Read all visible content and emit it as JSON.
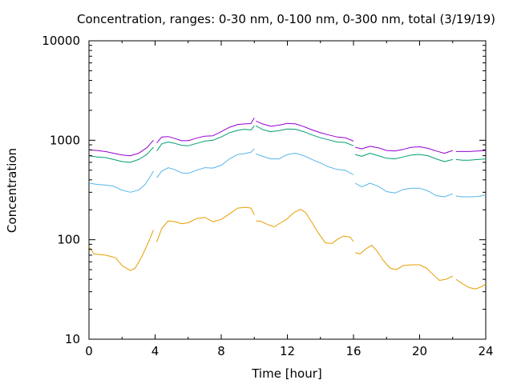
{
  "chart_data": {
    "type": "line",
    "title": "Concentration, ranges: 0-30 nm, 0-100 nm, 0-300 nm, total (3/19/19)",
    "xlabel": "Time [hour]",
    "ylabel": "Concentration",
    "xlim": [
      0,
      24
    ],
    "ylim": [
      10,
      10000
    ],
    "yscale": "log",
    "grid": false,
    "xticks": [
      0,
      4,
      8,
      12,
      16,
      20,
      24
    ],
    "xtick_labels": [
      "0",
      "4",
      "8",
      "12",
      "16",
      "20",
      "24"
    ],
    "yticks": [
      10,
      100,
      1000,
      10000
    ],
    "ytick_labels": [
      "10",
      "100",
      "1000",
      "10000"
    ],
    "series": [
      {
        "color": "#e69f00",
        "segments": [
          [
            [
              0,
              85
            ],
            [
              0.3,
              72
            ],
            [
              1,
              70
            ],
            [
              1.6,
              66
            ],
            [
              2,
              55
            ],
            [
              2.5,
              49
            ],
            [
              2.8,
              52
            ],
            [
              3.2,
              68
            ],
            [
              3.6,
              95
            ],
            [
              3.9,
              125
            ]
          ],
          [
            [
              4.1,
              95
            ],
            [
              4.4,
              130
            ],
            [
              4.8,
              155
            ],
            [
              5.2,
              152
            ],
            [
              5.6,
              145
            ],
            [
              6,
              148
            ],
            [
              6.5,
              163
            ],
            [
              7,
              168
            ],
            [
              7.5,
              152
            ],
            [
              8,
              160
            ],
            [
              8.5,
              182
            ],
            [
              9,
              208
            ],
            [
              9.5,
              212
            ],
            [
              9.8,
              208
            ],
            [
              10,
              178
            ]
          ],
          [
            [
              10.1,
              155
            ],
            [
              10.4,
              153
            ],
            [
              10.8,
              142
            ],
            [
              11.2,
              135
            ],
            [
              11.6,
              148
            ],
            [
              12,
              163
            ],
            [
              12.4,
              188
            ],
            [
              12.8,
              202
            ],
            [
              13.1,
              188
            ],
            [
              13.5,
              148
            ],
            [
              13.9,
              115
            ],
            [
              14.3,
              93
            ],
            [
              14.7,
              92
            ],
            [
              15,
              100
            ],
            [
              15.4,
              109
            ],
            [
              15.8,
              106
            ],
            [
              16,
              96
            ]
          ],
          [
            [
              16.1,
              74
            ],
            [
              16.4,
              72
            ],
            [
              16.8,
              82
            ],
            [
              17.1,
              88
            ],
            [
              17.4,
              78
            ],
            [
              17.8,
              62
            ],
            [
              18.2,
              52
            ],
            [
              18.6,
              50
            ],
            [
              19,
              55
            ],
            [
              19.5,
              56
            ],
            [
              20,
              56
            ],
            [
              20.4,
              52
            ],
            [
              20.8,
              45
            ],
            [
              21.2,
              39
            ],
            [
              21.6,
              40
            ],
            [
              22,
              43
            ]
          ],
          [
            [
              22.2,
              40
            ],
            [
              22.6,
              36
            ],
            [
              23,
              33
            ],
            [
              23.4,
              32
            ],
            [
              23.8,
              34
            ],
            [
              24,
              36
            ]
          ]
        ]
      },
      {
        "color": "#56b4e9",
        "segments": [
          [
            [
              0,
              370
            ],
            [
              0.5,
              360
            ],
            [
              1,
              355
            ],
            [
              1.5,
              345
            ],
            [
              2,
              315
            ],
            [
              2.5,
              300
            ],
            [
              3,
              315
            ],
            [
              3.4,
              360
            ],
            [
              3.7,
              430
            ],
            [
              3.9,
              490
            ]
          ],
          [
            [
              4.1,
              420
            ],
            [
              4.4,
              490
            ],
            [
              4.8,
              530
            ],
            [
              5.2,
              505
            ],
            [
              5.6,
              470
            ],
            [
              6,
              465
            ],
            [
              6.5,
              500
            ],
            [
              7,
              530
            ],
            [
              7.5,
              525
            ],
            [
              8,
              560
            ],
            [
              8.5,
              650
            ],
            [
              9,
              720
            ],
            [
              9.4,
              735
            ],
            [
              9.8,
              760
            ],
            [
              10,
              820
            ]
          ],
          [
            [
              10.1,
              730
            ],
            [
              10.5,
              690
            ],
            [
              11,
              650
            ],
            [
              11.5,
              650
            ],
            [
              12,
              720
            ],
            [
              12.5,
              740
            ],
            [
              13,
              700
            ],
            [
              13.5,
              640
            ],
            [
              14,
              590
            ],
            [
              14.5,
              540
            ],
            [
              15,
              510
            ],
            [
              15.5,
              500
            ],
            [
              16,
              450
            ]
          ],
          [
            [
              16.1,
              370
            ],
            [
              16.5,
              340
            ],
            [
              17,
              370
            ],
            [
              17.5,
              345
            ],
            [
              18,
              305
            ],
            [
              18.5,
              295
            ],
            [
              19,
              320
            ],
            [
              19.5,
              330
            ],
            [
              20,
              330
            ],
            [
              20.5,
              310
            ],
            [
              21,
              278
            ],
            [
              21.5,
              270
            ],
            [
              22,
              290
            ]
          ],
          [
            [
              22.2,
              275
            ],
            [
              22.6,
              270
            ],
            [
              23,
              270
            ],
            [
              23.5,
              272
            ],
            [
              24,
              282
            ]
          ]
        ]
      },
      {
        "color": "#009e73",
        "segments": [
          [
            [
              0,
              700
            ],
            [
              0.5,
              680
            ],
            [
              1,
              670
            ],
            [
              1.5,
              640
            ],
            [
              2,
              610
            ],
            [
              2.5,
              600
            ],
            [
              3,
              640
            ],
            [
              3.5,
              720
            ],
            [
              3.9,
              850
            ]
          ],
          [
            [
              4.1,
              780
            ],
            [
              4.4,
              920
            ],
            [
              4.8,
              960
            ],
            [
              5.2,
              930
            ],
            [
              5.6,
              890
            ],
            [
              6,
              880
            ],
            [
              6.5,
              930
            ],
            [
              7,
              980
            ],
            [
              7.5,
              1000
            ],
            [
              8,
              1080
            ],
            [
              8.5,
              1190
            ],
            [
              9,
              1260
            ],
            [
              9.4,
              1290
            ],
            [
              9.8,
              1270
            ],
            [
              10,
              1400
            ]
          ],
          [
            [
              10.1,
              1400
            ],
            [
              10.5,
              1280
            ],
            [
              11,
              1220
            ],
            [
              11.5,
              1250
            ],
            [
              12,
              1300
            ],
            [
              12.5,
              1290
            ],
            [
              13,
              1220
            ],
            [
              13.5,
              1130
            ],
            [
              14,
              1060
            ],
            [
              14.5,
              1010
            ],
            [
              15,
              960
            ],
            [
              15.5,
              950
            ],
            [
              16,
              880
            ]
          ],
          [
            [
              16.1,
              720
            ],
            [
              16.5,
              690
            ],
            [
              17,
              740
            ],
            [
              17.5,
              700
            ],
            [
              18,
              660
            ],
            [
              18.5,
              650
            ],
            [
              19,
              680
            ],
            [
              19.5,
              710
            ],
            [
              20,
              720
            ],
            [
              20.5,
              700
            ],
            [
              21,
              650
            ],
            [
              21.5,
              610
            ],
            [
              22,
              640
            ]
          ],
          [
            [
              22.2,
              640
            ],
            [
              22.6,
              630
            ],
            [
              23,
              630
            ],
            [
              23.5,
              640
            ],
            [
              24,
              650
            ]
          ]
        ]
      },
      {
        "color": "#9400d3",
        "segments": [
          [
            [
              0,
              800
            ],
            [
              0.5,
              790
            ],
            [
              1,
              770
            ],
            [
              1.5,
              740
            ],
            [
              2,
              710
            ],
            [
              2.5,
              700
            ],
            [
              3,
              740
            ],
            [
              3.5,
              840
            ],
            [
              3.9,
              1000
            ]
          ],
          [
            [
              4.1,
              940
            ],
            [
              4.4,
              1080
            ],
            [
              4.8,
              1090
            ],
            [
              5.2,
              1040
            ],
            [
              5.6,
              990
            ],
            [
              6,
              990
            ],
            [
              6.5,
              1050
            ],
            [
              7,
              1100
            ],
            [
              7.5,
              1110
            ],
            [
              8,
              1220
            ],
            [
              8.5,
              1350
            ],
            [
              9,
              1440
            ],
            [
              9.4,
              1460
            ],
            [
              9.8,
              1470
            ],
            [
              10,
              1680
            ]
          ],
          [
            [
              10.1,
              1560
            ],
            [
              10.5,
              1460
            ],
            [
              11,
              1380
            ],
            [
              11.5,
              1420
            ],
            [
              12,
              1480
            ],
            [
              12.5,
              1460
            ],
            [
              13,
              1370
            ],
            [
              13.5,
              1270
            ],
            [
              14,
              1190
            ],
            [
              14.5,
              1130
            ],
            [
              15,
              1080
            ],
            [
              15.5,
              1060
            ],
            [
              16,
              980
            ]
          ],
          [
            [
              16.1,
              850
            ],
            [
              16.5,
              820
            ],
            [
              17,
              870
            ],
            [
              17.5,
              840
            ],
            [
              18,
              790
            ],
            [
              18.5,
              780
            ],
            [
              19,
              810
            ],
            [
              19.5,
              850
            ],
            [
              20,
              860
            ],
            [
              20.5,
              830
            ],
            [
              21,
              780
            ],
            [
              21.5,
              740
            ],
            [
              22,
              790
            ]
          ],
          [
            [
              22.2,
              770
            ],
            [
              22.6,
              770
            ],
            [
              23,
              770
            ],
            [
              23.5,
              780
            ],
            [
              24,
              790
            ]
          ]
        ]
      }
    ]
  }
}
